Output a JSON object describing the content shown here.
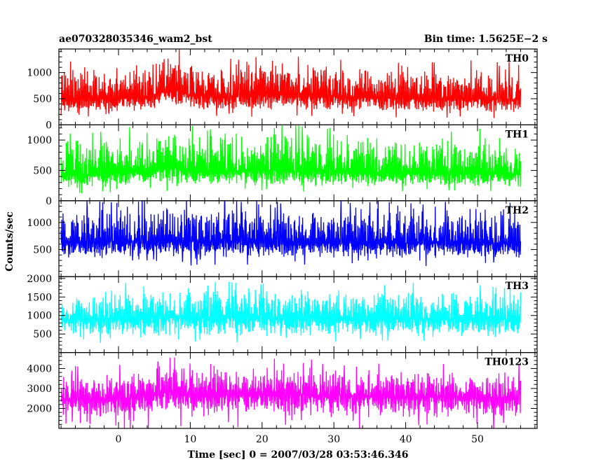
{
  "chart_data": {
    "type": "line",
    "title": "ae070328035346_wam2_bst",
    "subtitle": "Bin time: 1.5625E−2 s",
    "xlabel": "Time [sec] 0 = 2007/03/28 03:53:46.346",
    "ylabel": "Counts/sec",
    "xlim": [
      -8.3,
      58.3
    ],
    "xticks": [
      0,
      10,
      20,
      30,
      40,
      50
    ],
    "x_start": -8,
    "x_end": 56,
    "grid": false,
    "panels": [
      {
        "name": "TH0",
        "color": "#ff0000",
        "ylim": [
          0,
          1450
        ],
        "yticks": [
          0,
          500,
          1000
        ],
        "baseline": 480,
        "envelope": [
          [
            -8,
            480,
            230,
            1150
          ],
          [
            0,
            500,
            260,
            1200
          ],
          [
            4,
            540,
            290,
            1250
          ],
          [
            6,
            620,
            330,
            1350
          ],
          [
            8,
            660,
            360,
            1400
          ],
          [
            10,
            560,
            300,
            1250
          ],
          [
            15,
            540,
            280,
            1200
          ],
          [
            20,
            600,
            320,
            1300
          ],
          [
            25,
            560,
            300,
            1250
          ],
          [
            30,
            540,
            290,
            1200
          ],
          [
            40,
            510,
            270,
            1150
          ],
          [
            50,
            500,
            260,
            1150
          ],
          [
            56,
            480,
            240,
            1100
          ]
        ]
      },
      {
        "name": "TH1",
        "color": "#00ff00",
        "ylim": [
          0,
          1250
        ],
        "yticks": [
          0,
          500,
          1000
        ],
        "baseline": 420,
        "envelope": [
          [
            -8,
            420,
            230,
            1050
          ],
          [
            0,
            450,
            240,
            1100
          ],
          [
            6,
            520,
            280,
            1200
          ],
          [
            8,
            540,
            300,
            1220
          ],
          [
            10,
            480,
            260,
            1150
          ],
          [
            20,
            500,
            270,
            1200
          ],
          [
            30,
            470,
            250,
            1150
          ],
          [
            40,
            460,
            250,
            1100
          ],
          [
            50,
            450,
            240,
            1100
          ],
          [
            56,
            430,
            230,
            1050
          ]
        ]
      },
      {
        "name": "TH2",
        "color": "#0000ff",
        "ylim": [
          0,
          1400
        ],
        "yticks": [
          500,
          1000
        ],
        "baseline": 620,
        "envelope": [
          [
            -8,
            620,
            360,
            1300
          ],
          [
            0,
            640,
            370,
            1350
          ],
          [
            10,
            650,
            380,
            1380
          ],
          [
            20,
            640,
            370,
            1350
          ],
          [
            30,
            630,
            360,
            1340
          ],
          [
            40,
            620,
            360,
            1320
          ],
          [
            50,
            620,
            360,
            1300
          ],
          [
            56,
            610,
            350,
            1280
          ]
        ]
      },
      {
        "name": "TH3",
        "color": "#00ffff",
        "ylim": [
          0,
          2050
        ],
        "yticks": [
          500,
          1000,
          1500,
          2000
        ],
        "baseline": 880,
        "envelope": [
          [
            -8,
            880,
            450,
            1700
          ],
          [
            0,
            920,
            470,
            1750
          ],
          [
            10,
            950,
            480,
            1800
          ],
          [
            20,
            940,
            470,
            1800
          ],
          [
            30,
            930,
            470,
            1780
          ],
          [
            40,
            910,
            460,
            1750
          ],
          [
            50,
            900,
            460,
            1720
          ],
          [
            56,
            880,
            450,
            1700
          ]
        ]
      },
      {
        "name": "TH0123",
        "color": "#ff00ff",
        "ylim": [
          1000,
          4800
        ],
        "yticks": [
          2000,
          3000,
          4000
        ],
        "baseline": 2450,
        "envelope": [
          [
            -8,
            2450,
            1550,
            3800
          ],
          [
            0,
            2500,
            1600,
            3900
          ],
          [
            4,
            2600,
            1700,
            4000
          ],
          [
            6,
            2800,
            1850,
            4300
          ],
          [
            8,
            2900,
            1950,
            4500
          ],
          [
            10,
            2650,
            1700,
            4100
          ],
          [
            20,
            2750,
            1750,
            4200
          ],
          [
            25,
            2700,
            1700,
            4150
          ],
          [
            30,
            2650,
            1700,
            4050
          ],
          [
            40,
            2600,
            1650,
            4000
          ],
          [
            50,
            2550,
            1600,
            3950
          ],
          [
            56,
            2500,
            1550,
            3900
          ]
        ]
      }
    ]
  }
}
